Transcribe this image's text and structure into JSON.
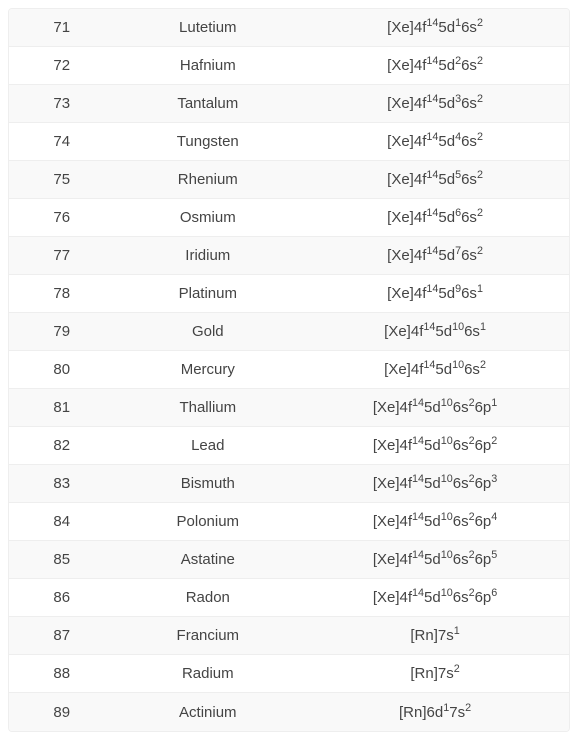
{
  "table": {
    "background_color": "#ffffff",
    "row_odd_bg": "#f9f9f9",
    "row_even_bg": "#ffffff",
    "border_color": "#eeeeee",
    "text_color": "#444444",
    "font_size": 15,
    "columns": [
      "atomic_number",
      "name",
      "electron_configuration"
    ],
    "rows": [
      {
        "num": "71",
        "name": "Lutetium",
        "config": [
          [
            "[Xe]4f",
            "14"
          ],
          [
            "5d",
            "1"
          ],
          [
            "6s",
            "2"
          ]
        ]
      },
      {
        "num": "72",
        "name": "Hafnium",
        "config": [
          [
            "[Xe]4f",
            "14"
          ],
          [
            "5d",
            "2"
          ],
          [
            "6s",
            "2"
          ]
        ]
      },
      {
        "num": "73",
        "name": "Tantalum",
        "config": [
          [
            "[Xe]4f",
            "14"
          ],
          [
            "5d",
            "3"
          ],
          [
            "6s",
            "2"
          ]
        ]
      },
      {
        "num": "74",
        "name": "Tungsten",
        "config": [
          [
            "[Xe]4f",
            "14"
          ],
          [
            "5d",
            "4"
          ],
          [
            "6s",
            "2"
          ]
        ]
      },
      {
        "num": "75",
        "name": "Rhenium",
        "config": [
          [
            "[Xe]4f",
            "14"
          ],
          [
            "5d",
            "5"
          ],
          [
            "6s",
            "2"
          ]
        ]
      },
      {
        "num": "76",
        "name": "Osmium",
        "config": [
          [
            "[Xe]4f",
            "14"
          ],
          [
            "5d",
            "6"
          ],
          [
            "6s",
            "2"
          ]
        ]
      },
      {
        "num": "77",
        "name": "Iridium",
        "config": [
          [
            "[Xe]4f",
            "14"
          ],
          [
            "5d",
            "7"
          ],
          [
            "6s",
            "2"
          ]
        ]
      },
      {
        "num": "78",
        "name": "Platinum",
        "config": [
          [
            "[Xe]4f",
            "14"
          ],
          [
            "5d",
            "9"
          ],
          [
            "6s",
            "1"
          ]
        ]
      },
      {
        "num": "79",
        "name": "Gold",
        "config": [
          [
            "[Xe]4f",
            "14"
          ],
          [
            "5d",
            "10"
          ],
          [
            "6s",
            "1"
          ]
        ]
      },
      {
        "num": "80",
        "name": "Mercury",
        "config": [
          [
            "[Xe]4f",
            "14"
          ],
          [
            "5d",
            "10"
          ],
          [
            "6s",
            "2"
          ]
        ]
      },
      {
        "num": "81",
        "name": "Thallium",
        "config": [
          [
            "[Xe]4f",
            "14"
          ],
          [
            "5d",
            "10"
          ],
          [
            "6s",
            "2"
          ],
          [
            "6p",
            "1"
          ]
        ]
      },
      {
        "num": "82",
        "name": "Lead",
        "config": [
          [
            "[Xe]4f",
            "14"
          ],
          [
            "5d",
            "10"
          ],
          [
            "6s",
            "2"
          ],
          [
            "6p",
            "2"
          ]
        ]
      },
      {
        "num": "83",
        "name": "Bismuth",
        "config": [
          [
            "[Xe]4f",
            "14"
          ],
          [
            "5d",
            "10"
          ],
          [
            "6s",
            "2"
          ],
          [
            "6p",
            "3"
          ]
        ]
      },
      {
        "num": "84",
        "name": "Polonium",
        "config": [
          [
            "[Xe]4f",
            "14"
          ],
          [
            "5d",
            "10"
          ],
          [
            "6s",
            "2"
          ],
          [
            "6p",
            "4"
          ]
        ]
      },
      {
        "num": "85",
        "name": "Astatine",
        "config": [
          [
            "[Xe]4f",
            "14"
          ],
          [
            "5d",
            "10"
          ],
          [
            "6s",
            "2"
          ],
          [
            "6p",
            "5"
          ]
        ]
      },
      {
        "num": "86",
        "name": "Radon",
        "config": [
          [
            "[Xe]4f",
            "14"
          ],
          [
            "5d",
            "10"
          ],
          [
            "6s",
            "2"
          ],
          [
            "6p",
            "6"
          ]
        ]
      },
      {
        "num": "87",
        "name": "Francium",
        "config": [
          [
            "[Rn]7s",
            "1"
          ]
        ]
      },
      {
        "num": "88",
        "name": "Radium",
        "config": [
          [
            "[Rn]7s",
            "2"
          ]
        ]
      },
      {
        "num": "89",
        "name": "Actinium",
        "config": [
          [
            "[Rn]6d",
            "1"
          ],
          [
            "7s",
            "2"
          ]
        ]
      }
    ]
  }
}
